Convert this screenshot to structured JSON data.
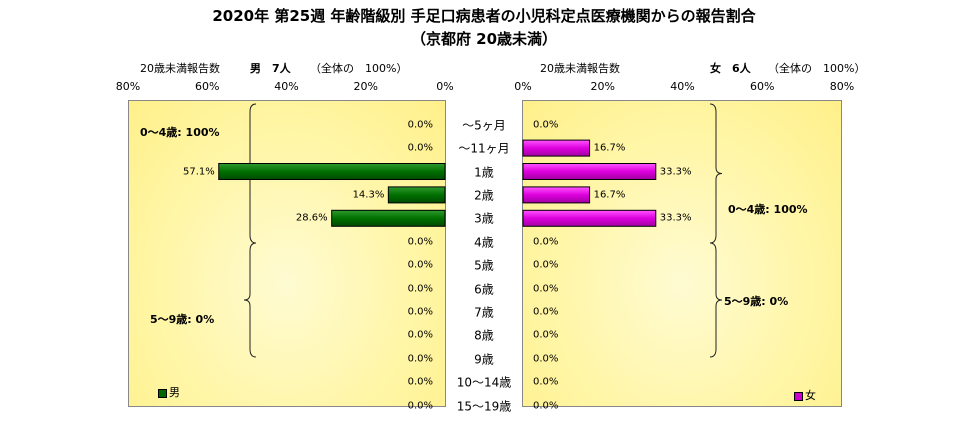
{
  "title": "2020年 第25週 年齢階級別 手足口病患者の小児科定点医療機関からの報告割合",
  "subtitle": "（京都府 20歳未満）",
  "chart_data": {
    "type": "bar",
    "orientation": "horizontal-butterfly",
    "categories": [
      "～5ヶ月",
      "～11ヶ月",
      "1歳",
      "2歳",
      "3歳",
      "4歳",
      "5歳",
      "6歳",
      "7歳",
      "8歳",
      "9歳",
      "10～14歳",
      "15～19歳"
    ],
    "xlim": [
      0,
      80
    ],
    "ticks": [
      "80%",
      "60%",
      "40%",
      "20%",
      "0%"
    ],
    "ticks_right": [
      "0%",
      "20%",
      "40%",
      "60%",
      "80%"
    ],
    "series": [
      {
        "name": "男",
        "color": "#006400",
        "side": "left",
        "values": [
          0.0,
          0.0,
          57.1,
          14.3,
          28.6,
          0.0,
          0.0,
          0.0,
          0.0,
          0.0,
          0.0,
          0.0,
          0.0
        ],
        "labels": [
          "0.0%",
          "0.0%",
          "57.1%",
          "14.3%",
          "28.6%",
          "0.0%",
          "0.0%",
          "0.0%",
          "0.0%",
          "0.0%",
          "0.0%",
          "0.0%",
          "0.0%"
        ]
      },
      {
        "name": "女",
        "color": "#cc00cc",
        "side": "right",
        "values": [
          0.0,
          16.7,
          33.3,
          16.7,
          33.3,
          0.0,
          0.0,
          0.0,
          0.0,
          0.0,
          0.0,
          0.0,
          0.0
        ],
        "labels": [
          "0.0%",
          "16.7%",
          "33.3%",
          "16.7%",
          "33.3%",
          "0.0%",
          "0.0%",
          "0.0%",
          "0.0%",
          "0.0%",
          "0.0%",
          "0.0%",
          "0.0%"
        ]
      }
    ]
  },
  "headers": {
    "left_count_label": "20歳未満報告数",
    "left_gender": "男　7人",
    "left_total": "（全体の　100%）",
    "right_count_label": "20歳未満報告数",
    "right_gender": "女　6人",
    "right_total": "（全体の　100%）"
  },
  "summaries": {
    "left_0_4": "0～4歳: 100%",
    "left_5_9": "5～9歳: 0%",
    "right_0_4": "0～4歳: 100%",
    "right_5_9": "5～9歳: 0%"
  },
  "legend": {
    "male": "男",
    "female": "女"
  }
}
